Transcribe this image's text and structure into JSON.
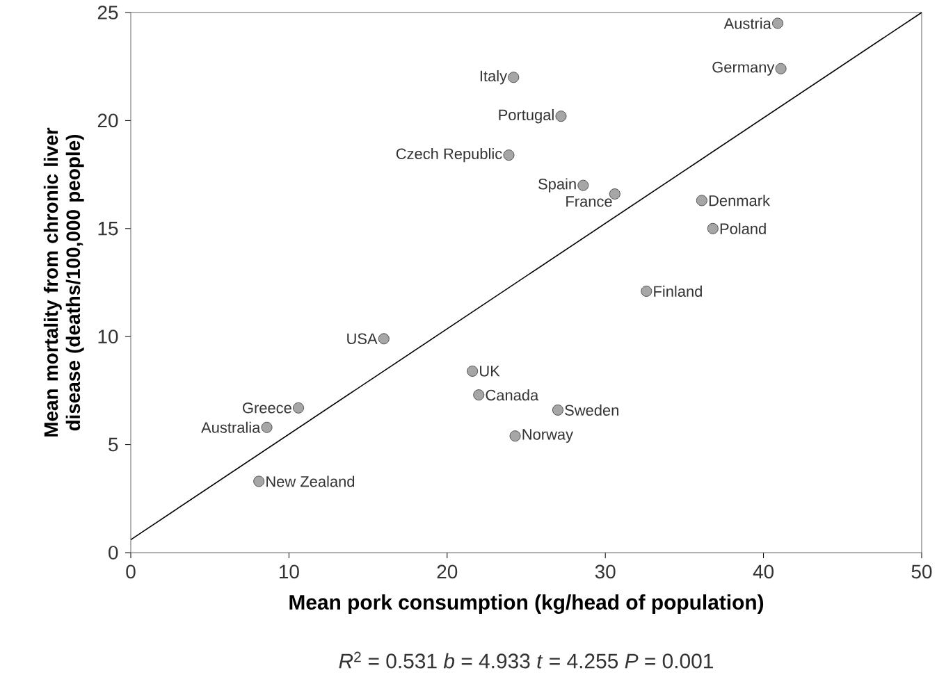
{
  "chart_data": {
    "type": "scatter",
    "xlabel": "Mean pork consumption (kg/head of population)",
    "ylabel": "Mean mortality from chronic liver disease (deaths/100,000 people)",
    "xlim": [
      0,
      50
    ],
    "ylim": [
      0,
      25
    ],
    "xticks": [
      0,
      10,
      20,
      30,
      40,
      50
    ],
    "yticks": [
      0,
      5,
      10,
      15,
      20,
      25
    ],
    "series": [
      {
        "type": "scatter",
        "marker": "circle",
        "color": "#a6a6a6",
        "x": [
          40.9,
          41.1,
          24.2,
          27.2,
          23.9,
          28.6,
          30.6,
          36.1,
          36.8,
          32.6,
          16.0,
          21.6,
          22.0,
          27.0,
          24.3,
          10.6,
          8.6,
          8.1
        ],
        "values": [
          24.5,
          22.4,
          22.0,
          20.2,
          18.4,
          17.0,
          16.6,
          16.3,
          15.0,
          12.1,
          9.9,
          8.4,
          7.3,
          6.6,
          5.4,
          6.7,
          5.8,
          3.3
        ]
      },
      {
        "type": "line",
        "color": "#000000",
        "x": [
          0,
          50
        ],
        "values": [
          0.6,
          25
        ]
      }
    ],
    "annotations": [
      {
        "text": "Austria",
        "x": 40.9,
        "y": 24.5
      },
      {
        "text": "Germany",
        "x": 41.1,
        "y": 22.4
      },
      {
        "text": "Italy",
        "x": 24.2,
        "y": 22.0
      },
      {
        "text": "Portugal",
        "x": 27.2,
        "y": 20.2
      },
      {
        "text": "Czech Republic",
        "x": 23.9,
        "y": 18.4
      },
      {
        "text": "Spain",
        "x": 28.6,
        "y": 17.0
      },
      {
        "text": "France",
        "x": 30.6,
        "y": 16.6
      },
      {
        "text": "Denmark",
        "x": 36.1,
        "y": 16.3
      },
      {
        "text": "Poland",
        "x": 36.8,
        "y": 15.0
      },
      {
        "text": "Finland",
        "x": 32.6,
        "y": 12.1
      },
      {
        "text": "USA",
        "x": 16.0,
        "y": 9.9
      },
      {
        "text": "UK",
        "x": 21.6,
        "y": 8.4
      },
      {
        "text": "Canada",
        "x": 22.0,
        "y": 7.3
      },
      {
        "text": "Sweden",
        "x": 27.0,
        "y": 6.6
      },
      {
        "text": "Norway",
        "x": 24.3,
        "y": 5.4
      },
      {
        "text": "Greece",
        "x": 10.6,
        "y": 6.7
      },
      {
        "text": "Australia",
        "x": 8.6,
        "y": 5.8
      },
      {
        "text": "New Zealand",
        "x": 8.1,
        "y": 3.3
      },
      "*R*$^{2}$ = 0.531   *b* = 4.933   *t* = 4.255   *P* = 0.001"
    ]
  }
}
